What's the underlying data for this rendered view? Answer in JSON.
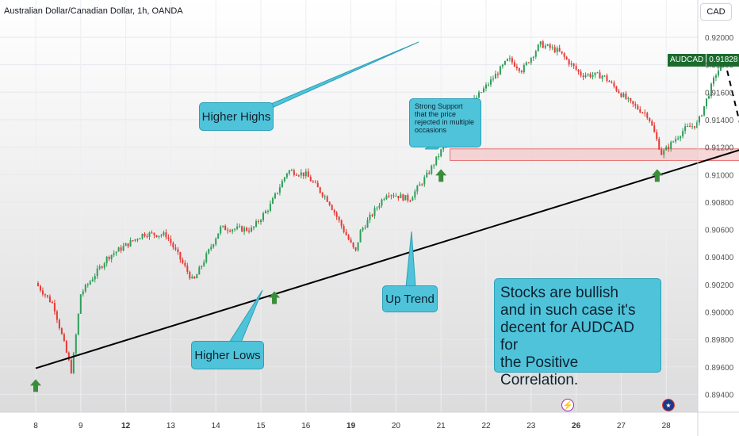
{
  "header": {
    "title": "Australian Dollar/Canadian Dollar, 1h, OANDA",
    "currency_button": "CAD"
  },
  "price_tag": {
    "symbol": "AUDCAD",
    "price": "0.91828"
  },
  "annotations": {
    "higher_highs": "Higher Highs",
    "higher_lows": "Higher Lows",
    "up_trend": "Up Trend",
    "support_lines": [
      "Strong Support",
      "that the price",
      "rejected in multiple",
      "occasions"
    ],
    "stocks_lines": [
      "Stocks are bullish",
      "and in such case it's",
      "decent for AUDCAD for",
      "the Positive Correlation."
    ]
  },
  "badges": {
    "event_icon": "lightning-icon",
    "flag_icon": "australia-flag-icon"
  },
  "colors": {
    "up": "#2e9e59",
    "down": "#e53935",
    "note": "#4fc3d9",
    "support_zone": "#f4c6c8",
    "support_border": "#e57373",
    "arrow": "#3a8e3a",
    "trend_line": "#000000",
    "price_tag": "#1b6b2e"
  },
  "chart_data": {
    "type": "candlestick",
    "symbol": "AUDCAD",
    "timeframe": "1h",
    "x_ticks": [
      "8",
      "9",
      "12",
      "13",
      "14",
      "15",
      "16",
      "19",
      "20",
      "21",
      "22",
      "23",
      "26",
      "27",
      "28"
    ],
    "y_ticks": [
      "0.92000",
      "0.91800",
      "0.91600",
      "0.91400",
      "0.91200",
      "0.91000",
      "0.90800",
      "0.90600",
      "0.90400",
      "0.90200",
      "0.90000",
      "0.89800",
      "0.89600",
      "0.89400"
    ],
    "ylim": [
      0.8935,
      0.9205
    ],
    "grid": true,
    "anchors": [
      {
        "t": 0.0,
        "p": 0.9021
      },
      {
        "t": 0.4,
        "p": 0.9005
      },
      {
        "t": 0.8,
        "p": 0.8956
      },
      {
        "t": 1.0,
        "p": 0.9013
      },
      {
        "t": 1.6,
        "p": 0.904
      },
      {
        "t": 2.4,
        "p": 0.9057
      },
      {
        "t": 2.9,
        "p": 0.9056
      },
      {
        "t": 3.5,
        "p": 0.9022
      },
      {
        "t": 4.1,
        "p": 0.9061
      },
      {
        "t": 4.8,
        "p": 0.906
      },
      {
        "t": 5.2,
        "p": 0.9077
      },
      {
        "t": 5.6,
        "p": 0.9103
      },
      {
        "t": 6.0,
        "p": 0.91
      },
      {
        "t": 6.5,
        "p": 0.9081
      },
      {
        "t": 7.1,
        "p": 0.9043
      },
      {
        "t": 7.2,
        "p": 0.9058
      },
      {
        "t": 7.8,
        "p": 0.9087
      },
      {
        "t": 8.3,
        "p": 0.9082
      },
      {
        "t": 8.7,
        "p": 0.91
      },
      {
        "t": 9.1,
        "p": 0.9123
      },
      {
        "t": 9.5,
        "p": 0.9145
      },
      {
        "t": 10.1,
        "p": 0.9168
      },
      {
        "t": 10.5,
        "p": 0.9184
      },
      {
        "t": 10.8,
        "p": 0.9176
      },
      {
        "t": 11.2,
        "p": 0.9195
      },
      {
        "t": 11.6,
        "p": 0.919
      },
      {
        "t": 12.1,
        "p": 0.9173
      },
      {
        "t": 12.6,
        "p": 0.9172
      },
      {
        "t": 13.2,
        "p": 0.9152
      },
      {
        "t": 13.6,
        "p": 0.9143
      },
      {
        "t": 13.9,
        "p": 0.9115
      },
      {
        "t": 14.4,
        "p": 0.9133
      },
      {
        "t": 14.7,
        "p": 0.9137
      },
      {
        "t": 15.1,
        "p": 0.9173
      },
      {
        "t": 15.3,
        "p": 0.9183
      }
    ],
    "candles_per_day": 19,
    "projection": [
      {
        "t": 15.3,
        "p": 0.9183
      },
      {
        "t": 15.8,
        "p": 0.9115
      },
      {
        "t": 16.1,
        "p": 0.9148
      },
      {
        "t": 16.6,
        "p": 0.921
      }
    ],
    "trend_line": [
      {
        "t": 0.0,
        "p": 0.8959
      },
      {
        "t": 18.0,
        "p": 0.9142
      }
    ],
    "support_zone": [
      0.9112,
      0.9117
    ],
    "support_zone_t": [
      9.2,
      18.3
    ],
    "arrows_t": [
      0.0,
      5.3,
      9.0,
      13.8
    ],
    "arrows_p": [
      0.8951,
      0.9015,
      0.9104,
      0.9104
    ]
  }
}
